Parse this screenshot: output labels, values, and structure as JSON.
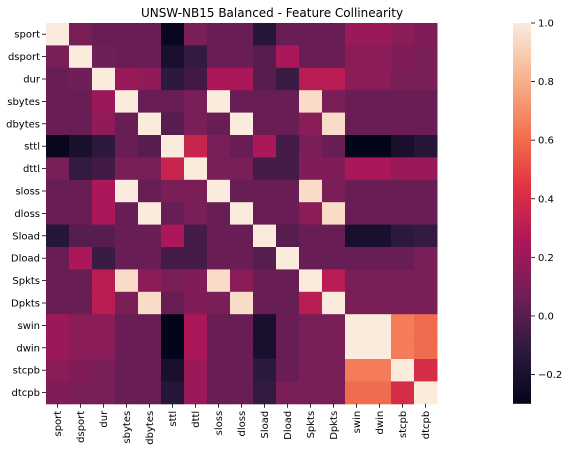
{
  "chart_data": {
    "type": "heatmap",
    "title": "UNSW-NB15 Balanced - Feature Collinearity",
    "features": [
      "sport",
      "dsport",
      "dur",
      "sbytes",
      "dbytes",
      "sttl",
      "dttl",
      "sloss",
      "dloss",
      "Sload",
      "Dload",
      "Spkts",
      "Dpkts",
      "swin",
      "dwin",
      "stcpb",
      "dtcpb"
    ],
    "matrix": [
      [
        1.0,
        0.1,
        0.05,
        0.05,
        0.05,
        -0.28,
        0.1,
        0.05,
        0.05,
        -0.15,
        0.05,
        0.05,
        0.05,
        0.2,
        0.2,
        0.15,
        0.12
      ],
      [
        0.1,
        1.0,
        0.07,
        0.05,
        0.05,
        -0.2,
        -0.1,
        0.05,
        0.05,
        0.0,
        0.25,
        0.05,
        0.05,
        0.15,
        0.15,
        0.12,
        0.1
      ],
      [
        0.05,
        0.07,
        1.0,
        0.2,
        0.17,
        -0.12,
        -0.06,
        0.25,
        0.25,
        0.0,
        -0.08,
        0.3,
        0.3,
        0.15,
        0.15,
        0.1,
        0.1
      ],
      [
        0.05,
        0.05,
        0.2,
        1.0,
        0.05,
        0.05,
        0.1,
        1.0,
        0.05,
        0.05,
        0.05,
        0.95,
        0.1,
        0.05,
        0.05,
        0.05,
        0.05
      ],
      [
        0.05,
        0.05,
        0.17,
        0.05,
        1.0,
        0.0,
        0.1,
        0.05,
        1.0,
        0.05,
        0.05,
        0.15,
        0.95,
        0.05,
        0.05,
        0.05,
        0.05
      ],
      [
        -0.28,
        -0.2,
        -0.12,
        0.05,
        0.0,
        1.0,
        0.35,
        0.1,
        0.05,
        0.25,
        -0.05,
        0.1,
        0.05,
        -0.3,
        -0.3,
        -0.2,
        -0.15
      ],
      [
        0.1,
        -0.1,
        -0.06,
        0.1,
        0.1,
        0.35,
        1.0,
        0.1,
        0.1,
        -0.05,
        -0.05,
        0.12,
        0.12,
        0.25,
        0.25,
        0.2,
        0.2
      ],
      [
        0.05,
        0.05,
        0.25,
        1.0,
        0.05,
        0.1,
        0.1,
        1.0,
        0.05,
        0.05,
        0.05,
        0.95,
        0.1,
        0.05,
        0.05,
        0.05,
        0.05
      ],
      [
        0.05,
        0.05,
        0.25,
        0.05,
        1.0,
        0.05,
        0.1,
        0.05,
        1.0,
        0.05,
        0.05,
        0.15,
        0.95,
        0.05,
        0.05,
        0.05,
        0.05
      ],
      [
        -0.15,
        0.0,
        0.0,
        0.05,
        0.05,
        0.25,
        -0.05,
        0.05,
        0.05,
        1.0,
        0.0,
        0.05,
        0.05,
        -0.2,
        -0.2,
        -0.12,
        -0.1
      ],
      [
        0.05,
        0.25,
        -0.08,
        0.05,
        0.05,
        -0.05,
        -0.05,
        0.05,
        0.05,
        0.0,
        1.0,
        0.05,
        0.05,
        0.05,
        0.05,
        0.05,
        0.1
      ],
      [
        0.05,
        0.05,
        0.3,
        0.95,
        0.15,
        0.1,
        0.12,
        0.95,
        0.15,
        0.05,
        0.05,
        1.0,
        0.3,
        0.1,
        0.1,
        0.1,
        0.1
      ],
      [
        0.05,
        0.05,
        0.3,
        0.1,
        0.95,
        0.05,
        0.12,
        0.1,
        0.95,
        0.05,
        0.05,
        0.3,
        1.0,
        0.1,
        0.1,
        0.1,
        0.1
      ],
      [
        0.2,
        0.15,
        0.15,
        0.05,
        0.05,
        -0.3,
        0.25,
        0.05,
        0.05,
        -0.2,
        0.05,
        0.1,
        0.1,
        1.0,
        1.0,
        0.65,
        0.6
      ],
      [
        0.2,
        0.15,
        0.15,
        0.05,
        0.05,
        -0.3,
        0.25,
        0.05,
        0.05,
        -0.2,
        0.05,
        0.1,
        0.1,
        1.0,
        1.0,
        0.65,
        0.6
      ],
      [
        0.15,
        0.12,
        0.1,
        0.05,
        0.05,
        -0.2,
        0.2,
        0.05,
        0.05,
        -0.12,
        0.05,
        0.1,
        0.1,
        0.65,
        0.65,
        1.0,
        0.4
      ],
      [
        0.12,
        0.1,
        0.1,
        0.05,
        0.05,
        -0.15,
        0.2,
        0.05,
        0.05,
        -0.1,
        0.1,
        0.1,
        0.1,
        0.6,
        0.6,
        0.4,
        1.0
      ]
    ],
    "vmin": -0.3,
    "vmax": 1.0,
    "colorbar_ticks": [
      "1.0",
      "0.8",
      "0.6",
      "0.4",
      "0.2",
      "0.0",
      "−0.2"
    ],
    "colormap": [
      "#03051a",
      "#2e1a3f",
      "#701f57",
      "#ad1759",
      "#e13342",
      "#f37651",
      "#f6b48f",
      "#faebdd"
    ]
  }
}
